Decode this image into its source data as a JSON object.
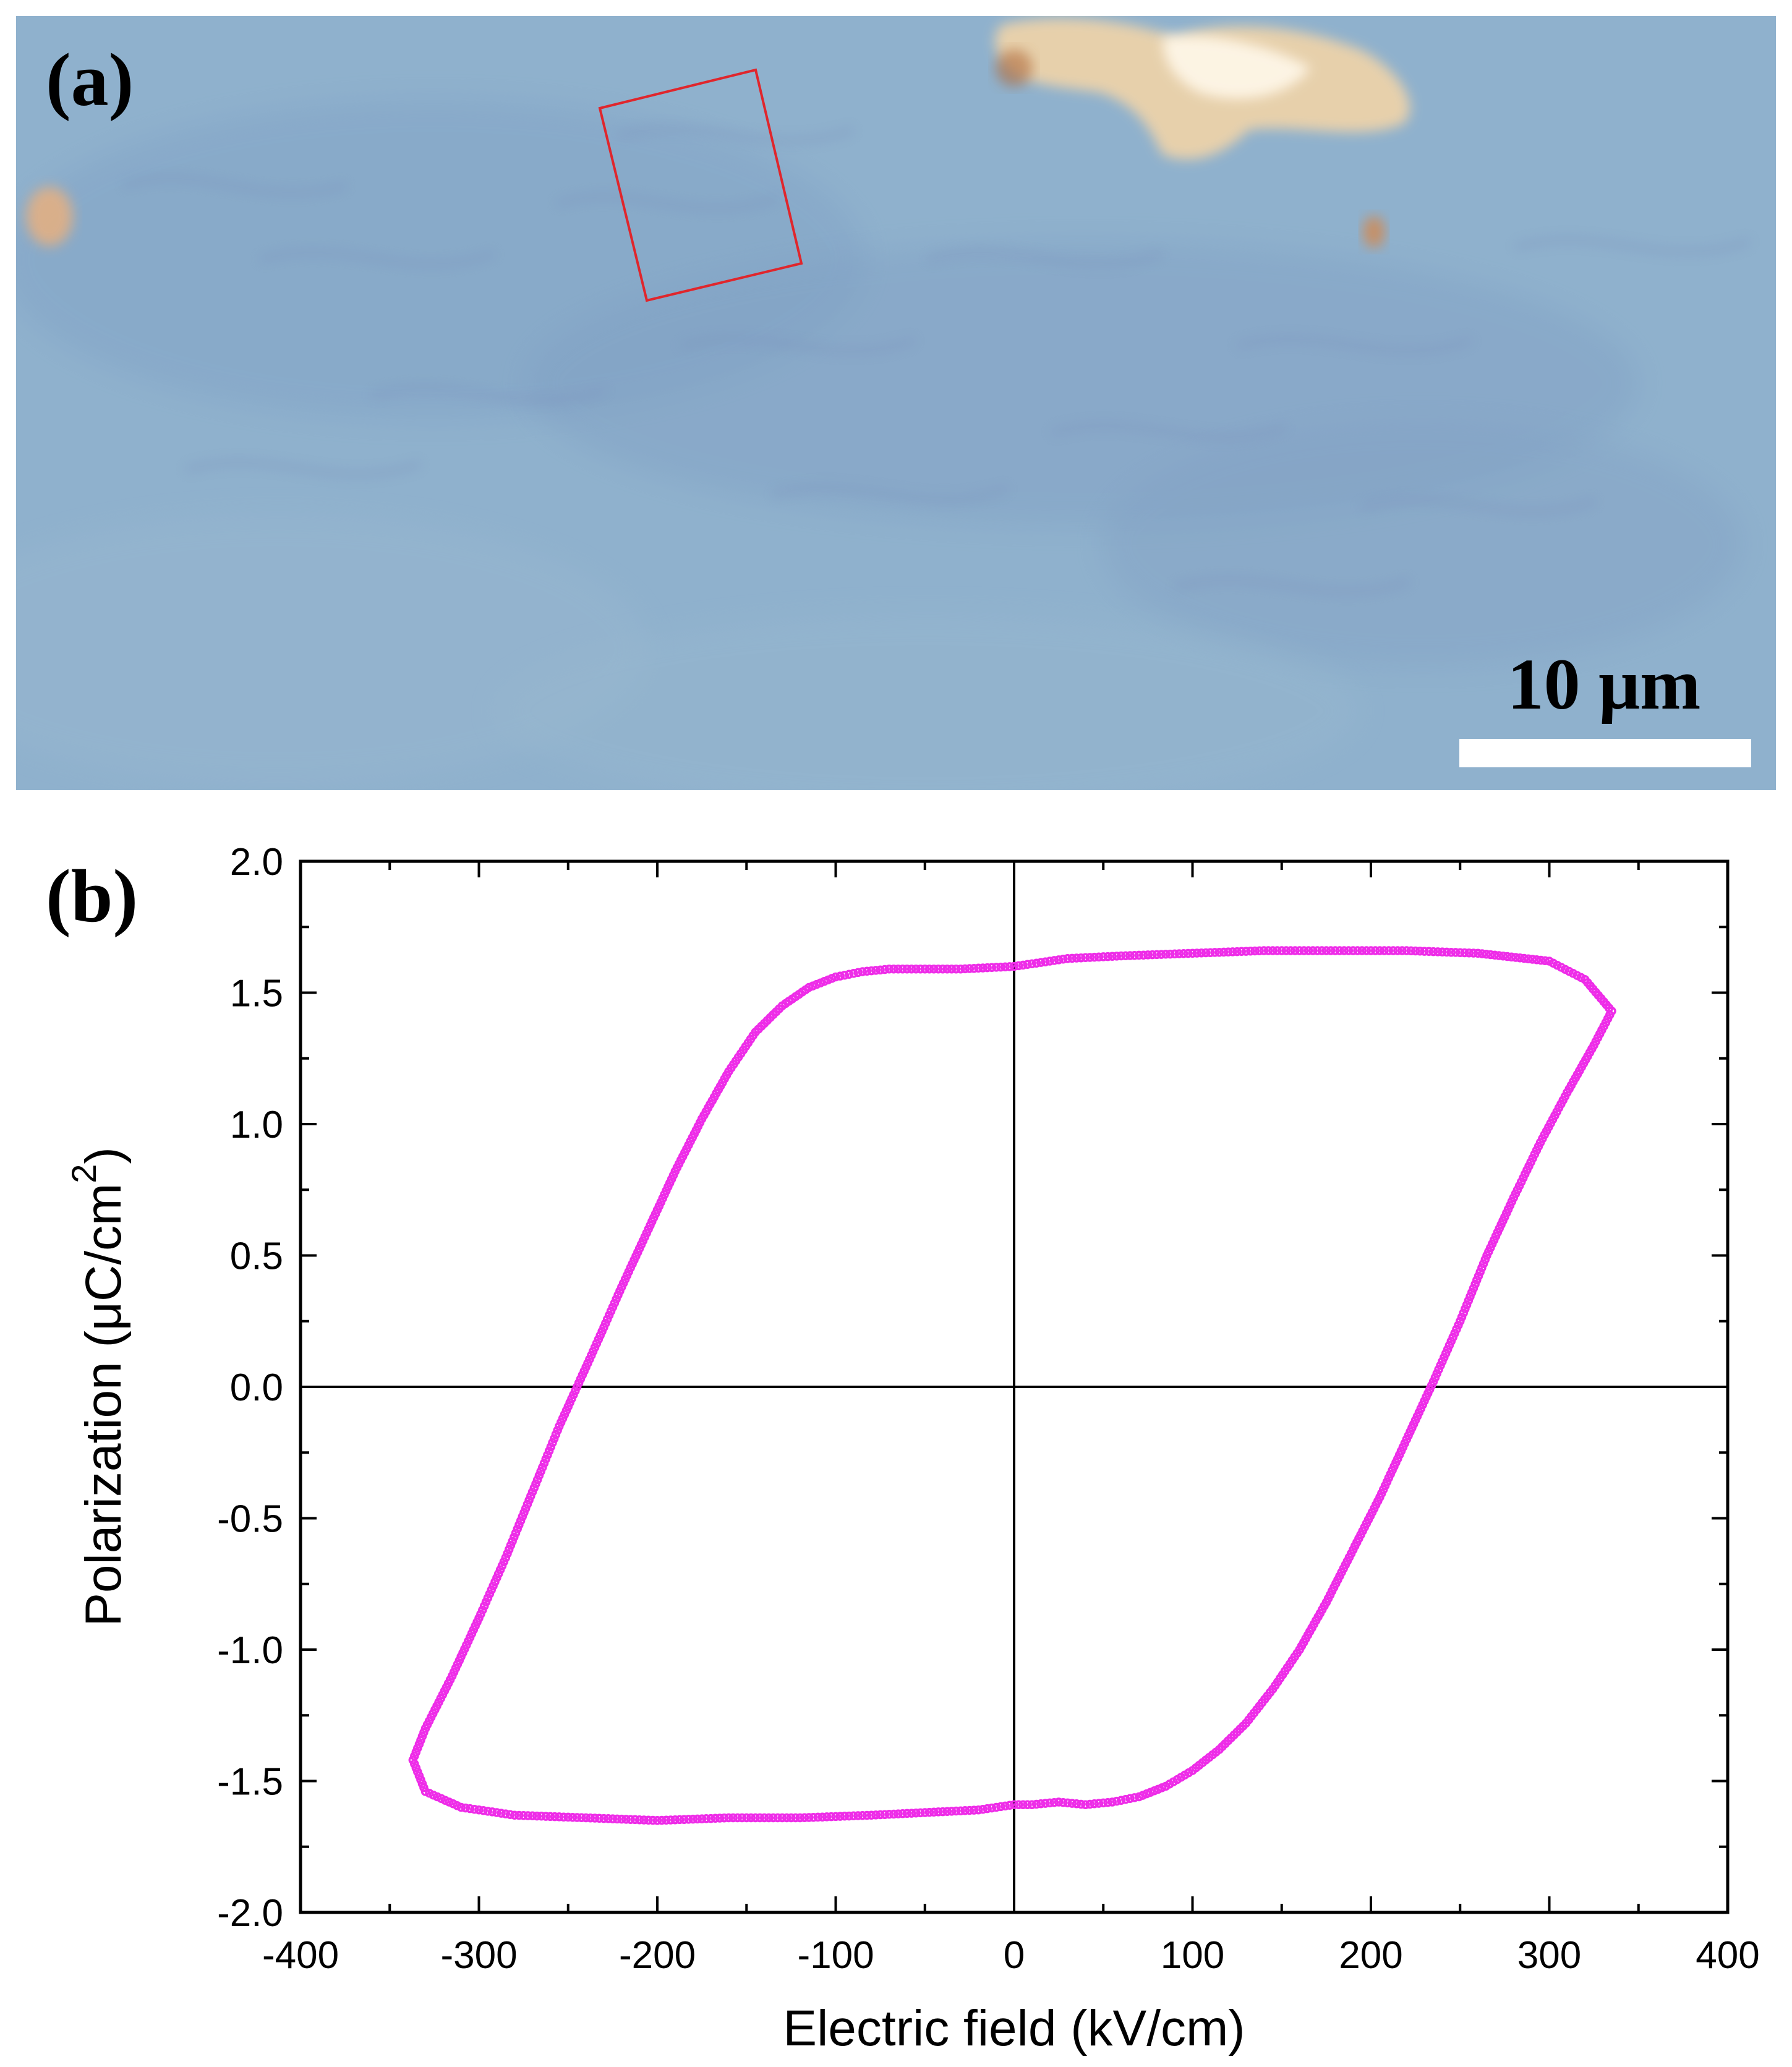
{
  "figure": {
    "panel_a": {
      "label": "(a)",
      "scale_bar_label": "10 μm",
      "colors": {
        "background": "#8fb1cd",
        "scale_bar": "#ffffff",
        "roi_box": "#e0262c",
        "crystal_highlight": "#f7d6a6"
      }
    },
    "panel_b": {
      "label": "(b)"
    }
  },
  "chart_data": {
    "type": "scatter",
    "xlabel": "Electric field (kV/cm)",
    "ylabel": "Polarization (μC/cm",
    "ylabel_superscript": "2",
    "ylabel_suffix": ")",
    "xlim": [
      -400,
      400
    ],
    "ylim": [
      -2.0,
      2.0
    ],
    "xticks": [
      -400,
      -300,
      -200,
      -100,
      0,
      100,
      200,
      300,
      400
    ],
    "yticks": [
      -2.0,
      -1.5,
      -1.0,
      -0.5,
      0.0,
      0.5,
      1.0,
      1.5,
      2.0
    ],
    "xtick_labels": [
      "-400",
      "-300",
      "-200",
      "-100",
      "0",
      "100",
      "200",
      "300",
      "400"
    ],
    "ytick_labels": [
      "-2.0",
      "-1.5",
      "-1.0",
      "-0.5",
      "0.0",
      "0.5",
      "1.0",
      "1.5",
      "2.0"
    ],
    "grid": false,
    "zero_lines": true,
    "series": [
      {
        "color": "#ee2ce8",
        "x": [
          335,
          325,
          310,
          295,
          280,
          265,
          250,
          235,
          220,
          205,
          190,
          175,
          160,
          145,
          130,
          115,
          100,
          85,
          70,
          55,
          40,
          25,
          10,
          0,
          -20,
          -50,
          -80,
          -120,
          -160,
          -200,
          -240,
          -280,
          -310,
          -330,
          -337,
          -330,
          -315,
          -300,
          -285,
          -270,
          -255,
          -245,
          -235,
          -220,
          -205,
          -190,
          -175,
          -160,
          -145,
          -130,
          -115,
          -100,
          -85,
          -70,
          -50,
          -30,
          0,
          30,
          60,
          100,
          140,
          180,
          220,
          260,
          300,
          320,
          335
        ],
        "y": [
          1.43,
          1.3,
          1.12,
          0.93,
          0.72,
          0.5,
          0.25,
          0.02,
          -0.2,
          -0.42,
          -0.62,
          -0.82,
          -1.0,
          -1.15,
          -1.28,
          -1.38,
          -1.46,
          -1.52,
          -1.56,
          -1.58,
          -1.59,
          -1.58,
          -1.59,
          -1.59,
          -1.61,
          -1.62,
          -1.63,
          -1.64,
          -1.64,
          -1.65,
          -1.64,
          -1.63,
          -1.6,
          -1.54,
          -1.42,
          -1.3,
          -1.1,
          -0.88,
          -0.65,
          -0.4,
          -0.15,
          0.0,
          0.15,
          0.38,
          0.6,
          0.82,
          1.02,
          1.2,
          1.35,
          1.45,
          1.52,
          1.56,
          1.58,
          1.59,
          1.59,
          1.59,
          1.6,
          1.63,
          1.64,
          1.65,
          1.66,
          1.66,
          1.66,
          1.65,
          1.62,
          1.55,
          1.43
        ]
      }
    ]
  }
}
